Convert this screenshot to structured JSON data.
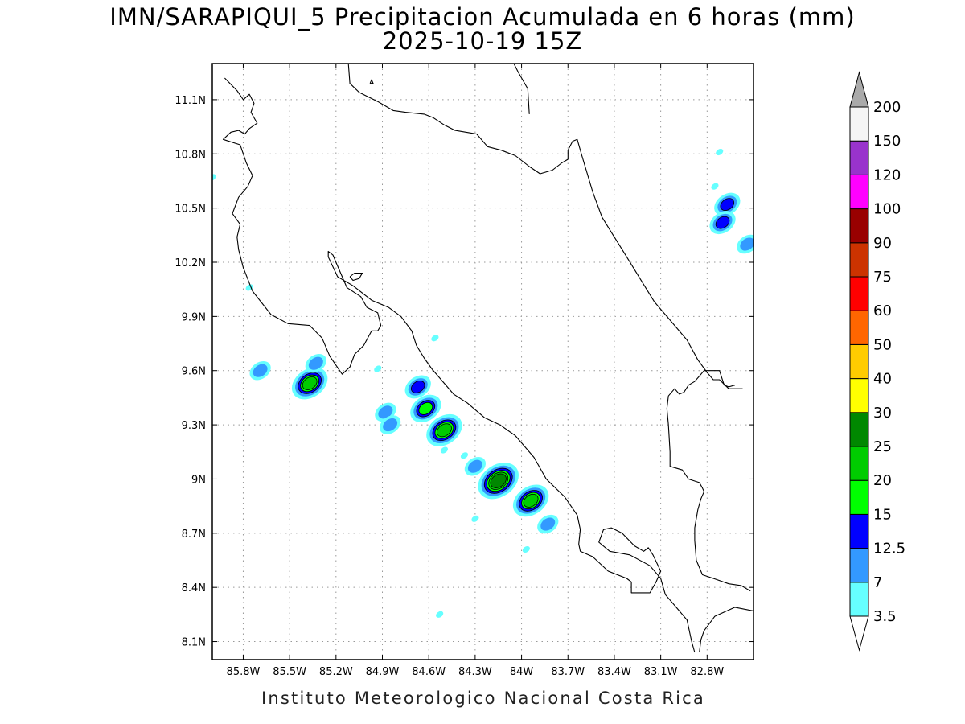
{
  "title": {
    "line1": "IMN/SARAPIQUI_5 Precipitacion Acumulada en 6 horas (mm)",
    "line2": "2025-10-19 15Z"
  },
  "footer": "Instituto Meteorologico Nacional Costa Rica",
  "map": {
    "lon_range": [
      -86.0,
      -82.5
    ],
    "lat_range": [
      8.0,
      11.3
    ],
    "lon_ticks": [
      {
        "value": -85.8,
        "label": "85.8W"
      },
      {
        "value": -85.5,
        "label": "85.5W"
      },
      {
        "value": -85.2,
        "label": "85.2W"
      },
      {
        "value": -84.9,
        "label": "84.9W"
      },
      {
        "value": -84.6,
        "label": "84.6W"
      },
      {
        "value": -84.3,
        "label": "84.3W"
      },
      {
        "value": -84.0,
        "label": "84W"
      },
      {
        "value": -83.7,
        "label": "83.7W"
      },
      {
        "value": -83.4,
        "label": "83.4W"
      },
      {
        "value": -83.1,
        "label": "83.1W"
      },
      {
        "value": -82.8,
        "label": "82.8W"
      }
    ],
    "lat_ticks": [
      {
        "value": 8.1,
        "label": "8.1N"
      },
      {
        "value": 8.4,
        "label": "8.4N"
      },
      {
        "value": 8.7,
        "label": "8.7N"
      },
      {
        "value": 9.0,
        "label": "9N"
      },
      {
        "value": 9.3,
        "label": "9.3N"
      },
      {
        "value": 9.6,
        "label": "9.6N"
      },
      {
        "value": 9.9,
        "label": "9.9N"
      },
      {
        "value": 10.2,
        "label": "10.2N"
      },
      {
        "value": 10.5,
        "label": "10.5N"
      },
      {
        "value": 10.8,
        "label": "10.8N"
      },
      {
        "value": 11.1,
        "label": "11.1N"
      }
    ],
    "grid": true,
    "coastline": [
      [
        [
          -85.92,
          11.22
        ],
        [
          -85.84,
          11.15
        ],
        [
          -85.8,
          11.1
        ],
        [
          -85.76,
          11.13
        ],
        [
          -85.73,
          11.08
        ],
        [
          -85.75,
          11.03
        ],
        [
          -85.71,
          10.97
        ],
        [
          -85.76,
          10.94
        ],
        [
          -85.79,
          10.91
        ],
        [
          -85.83,
          10.93
        ],
        [
          -85.88,
          10.92
        ],
        [
          -85.93,
          10.88
        ],
        [
          -85.82,
          10.85
        ],
        [
          -85.8,
          10.8
        ],
        [
          -85.78,
          10.75
        ],
        [
          -85.74,
          10.68
        ],
        [
          -85.77,
          10.62
        ],
        [
          -85.83,
          10.56
        ],
        [
          -85.87,
          10.47
        ],
        [
          -85.82,
          10.41
        ],
        [
          -85.84,
          10.34
        ],
        [
          -85.83,
          10.27
        ],
        [
          -85.8,
          10.17
        ],
        [
          -85.74,
          10.04
        ],
        [
          -85.62,
          9.91
        ],
        [
          -85.51,
          9.86
        ],
        [
          -85.37,
          9.85
        ],
        [
          -85.29,
          9.78
        ],
        [
          -85.24,
          9.68
        ],
        [
          -85.16,
          9.58
        ],
        [
          -85.11,
          9.62
        ],
        [
          -85.08,
          9.69
        ],
        [
          -85.02,
          9.74
        ],
        [
          -84.97,
          9.82
        ],
        [
          -84.93,
          9.82
        ],
        [
          -84.91,
          9.85
        ],
        [
          -84.93,
          9.92
        ],
        [
          -85.0,
          9.95
        ],
        [
          -85.04,
          10.01
        ],
        [
          -85.13,
          10.06
        ],
        [
          -85.17,
          10.14
        ],
        [
          -85.2,
          10.2
        ],
        [
          -85.22,
          10.24
        ],
        [
          -85.25,
          10.26
        ],
        [
          -85.25,
          10.23
        ],
        [
          -85.19,
          10.12
        ],
        [
          -85.09,
          10.07
        ],
        [
          -84.97,
          9.99
        ],
        [
          -84.86,
          9.95
        ],
        [
          -84.78,
          9.9
        ],
        [
          -84.71,
          9.82
        ],
        [
          -84.68,
          9.74
        ],
        [
          -84.63,
          9.67
        ],
        [
          -84.58,
          9.61
        ],
        [
          -84.52,
          9.55
        ],
        [
          -84.44,
          9.47
        ],
        [
          -84.35,
          9.42
        ],
        [
          -84.24,
          9.34
        ],
        [
          -84.14,
          9.3
        ],
        [
          -84.04,
          9.24
        ],
        [
          -83.92,
          9.12
        ],
        [
          -83.84,
          9.0
        ],
        [
          -83.72,
          8.9
        ],
        [
          -83.64,
          8.8
        ],
        [
          -83.62,
          8.72
        ],
        [
          -83.63,
          8.64
        ],
        [
          -83.62,
          8.6
        ],
        [
          -83.54,
          8.57
        ],
        [
          -83.44,
          8.49
        ],
        [
          -83.32,
          8.45
        ],
        [
          -83.29,
          8.43
        ],
        [
          -83.29,
          8.37
        ],
        [
          -83.17,
          8.37
        ],
        [
          -83.13,
          8.43
        ],
        [
          -83.1,
          8.49
        ],
        [
          -83.15,
          8.58
        ],
        [
          -83.18,
          8.62
        ],
        [
          -83.21,
          8.6
        ],
        [
          -83.27,
          8.63
        ],
        [
          -83.35,
          8.7
        ],
        [
          -83.42,
          8.73
        ],
        [
          -83.47,
          8.72
        ],
        [
          -83.5,
          8.65
        ],
        [
          -83.43,
          8.6
        ],
        [
          -83.3,
          8.58
        ],
        [
          -83.17,
          8.52
        ],
        [
          -83.1,
          8.45
        ],
        [
          -83.07,
          8.36
        ],
        [
          -83.0,
          8.29
        ],
        [
          -82.93,
          8.22
        ],
        [
          -82.9,
          8.1
        ],
        [
          -82.88,
          8.04
        ]
      ],
      [
        [
          -82.85,
          8.04
        ],
        [
          -82.84,
          8.11
        ],
        [
          -82.82,
          8.16
        ],
        [
          -82.75,
          8.24
        ],
        [
          -82.62,
          8.29
        ],
        [
          -82.5,
          8.27
        ]
      ],
      [
        [
          -85.12,
          11.3
        ],
        [
          -85.11,
          11.19
        ],
        [
          -85.05,
          11.14
        ],
        [
          -84.93,
          11.09
        ],
        [
          -84.83,
          11.04
        ],
        [
          -84.75,
          11.03
        ],
        [
          -84.63,
          11.02
        ],
        [
          -84.57,
          11.0
        ],
        [
          -84.5,
          10.96
        ],
        [
          -84.43,
          10.93
        ],
        [
          -84.36,
          10.92
        ],
        [
          -84.29,
          10.91
        ],
        [
          -84.22,
          10.84
        ],
        [
          -84.13,
          10.82
        ],
        [
          -84.04,
          10.79
        ],
        [
          -83.95,
          10.73
        ],
        [
          -83.88,
          10.69
        ],
        [
          -83.8,
          10.71
        ],
        [
          -83.74,
          10.75
        ],
        [
          -83.7,
          10.77
        ],
        [
          -83.7,
          10.82
        ],
        [
          -83.67,
          10.87
        ],
        [
          -83.64,
          10.88
        ],
        [
          -83.61,
          10.79
        ],
        [
          -83.54,
          10.59
        ],
        [
          -83.48,
          10.45
        ],
        [
          -83.4,
          10.34
        ],
        [
          -83.32,
          10.23
        ],
        [
          -83.22,
          10.09
        ],
        [
          -83.14,
          9.98
        ],
        [
          -83.03,
          9.87
        ],
        [
          -82.93,
          9.77
        ],
        [
          -82.86,
          9.66
        ],
        [
          -82.8,
          9.59
        ],
        [
          -82.76,
          9.55
        ],
        [
          -82.72,
          9.55
        ],
        [
          -82.66,
          9.5
        ],
        [
          -82.57,
          9.5
        ]
      ],
      [
        [
          -84.05,
          11.3
        ],
        [
          -84.02,
          11.25
        ],
        [
          -84.0,
          11.22
        ],
        [
          -83.96,
          11.16
        ],
        [
          -83.95,
          11.02
        ]
      ],
      [
        [
          -82.62,
          9.52
        ],
        [
          -82.66,
          9.51
        ],
        [
          -82.69,
          9.52
        ],
        [
          -82.72,
          9.6
        ],
        [
          -82.77,
          9.6
        ],
        [
          -82.82,
          9.6
        ],
        [
          -82.85,
          9.57
        ],
        [
          -82.88,
          9.54
        ],
        [
          -82.92,
          9.52
        ],
        [
          -82.95,
          9.48
        ],
        [
          -82.98,
          9.47
        ],
        [
          -83.01,
          9.5
        ],
        [
          -83.05,
          9.46
        ],
        [
          -83.06,
          9.39
        ],
        [
          -83.05,
          9.3
        ],
        [
          -83.04,
          9.15
        ],
        [
          -83.04,
          9.07
        ],
        [
          -82.96,
          9.05
        ],
        [
          -82.92,
          9.0
        ],
        [
          -82.85,
          8.98
        ],
        [
          -82.83,
          8.95
        ],
        [
          -82.82,
          8.93
        ],
        [
          -82.84,
          8.89
        ],
        [
          -82.86,
          8.83
        ],
        [
          -82.88,
          8.73
        ],
        [
          -82.88,
          8.66
        ],
        [
          -82.87,
          8.55
        ],
        [
          -82.83,
          8.47
        ],
        [
          -82.76,
          8.45
        ],
        [
          -82.66,
          8.42
        ],
        [
          -82.58,
          8.41
        ],
        [
          -82.52,
          8.38
        ]
      ]
    ],
    "islands": [
      [
        [
          -85.11,
          10.12
        ],
        [
          -85.08,
          10.14
        ],
        [
          -85.03,
          10.14
        ],
        [
          -85.05,
          10.11
        ],
        [
          -85.09,
          10.1
        ],
        [
          -85.11,
          10.12
        ]
      ],
      [
        [
          -84.98,
          11.19
        ],
        [
          -84.97,
          11.21
        ],
        [
          -84.96,
          11.19
        ],
        [
          -84.98,
          11.19
        ]
      ]
    ]
  },
  "colorbar": {
    "levels": [
      "3.5",
      "7",
      "12.5",
      "15",
      "20",
      "25",
      "30",
      "40",
      "50",
      "60",
      "75",
      "90",
      "100",
      "120",
      "150",
      "200"
    ],
    "colors": [
      "#ffffff",
      "#66ffff",
      "#3399ff",
      "#0000ff",
      "#00ff00",
      "#00cc00",
      "#008800",
      "#ffff00",
      "#ffcc00",
      "#ff6600",
      "#ff0000",
      "#cc3300",
      "#990000",
      "#ff00ff",
      "#9933cc",
      "#f5f5f5",
      "#aaaaaa"
    ]
  },
  "precipitation_cells": [
    {
      "lon": -85.37,
      "lat": 9.53,
      "level": 5
    },
    {
      "lon": -85.33,
      "lat": 9.64,
      "level": 2
    },
    {
      "lon": -85.69,
      "lat": 9.6,
      "level": 2
    },
    {
      "lon": -84.88,
      "lat": 9.37,
      "level": 2
    },
    {
      "lon": -84.85,
      "lat": 9.3,
      "level": 2
    },
    {
      "lon": -84.93,
      "lat": 9.61,
      "level": 1
    },
    {
      "lon": -84.67,
      "lat": 9.51,
      "level": 3
    },
    {
      "lon": -84.62,
      "lat": 9.39,
      "level": 4
    },
    {
      "lon": -84.5,
      "lat": 9.27,
      "level": 5
    },
    {
      "lon": -84.5,
      "lat": 9.16,
      "level": 1
    },
    {
      "lon": -84.37,
      "lat": 9.13,
      "level": 1
    },
    {
      "lon": -84.3,
      "lat": 9.07,
      "level": 2
    },
    {
      "lon": -84.15,
      "lat": 8.99,
      "level": 6
    },
    {
      "lon": -83.94,
      "lat": 8.88,
      "level": 5
    },
    {
      "lon": -83.83,
      "lat": 8.75,
      "level": 2
    },
    {
      "lon": -83.97,
      "lat": 8.61,
      "level": 1
    },
    {
      "lon": -84.53,
      "lat": 8.25,
      "level": 1
    },
    {
      "lon": -84.56,
      "lat": 9.78,
      "level": 1
    },
    {
      "lon": -84.3,
      "lat": 8.78,
      "level": 1
    },
    {
      "lon": -82.67,
      "lat": 10.52,
      "level": 3
    },
    {
      "lon": -82.7,
      "lat": 10.42,
      "level": 3
    },
    {
      "lon": -82.72,
      "lat": 10.81,
      "level": 1
    },
    {
      "lon": -82.54,
      "lat": 10.3,
      "level": 2
    },
    {
      "lon": -82.75,
      "lat": 10.62,
      "level": 1
    },
    {
      "lon": -85.76,
      "lat": 10.06,
      "level": 1
    },
    {
      "lon": -86.0,
      "lat": 10.67,
      "level": 1
    }
  ]
}
